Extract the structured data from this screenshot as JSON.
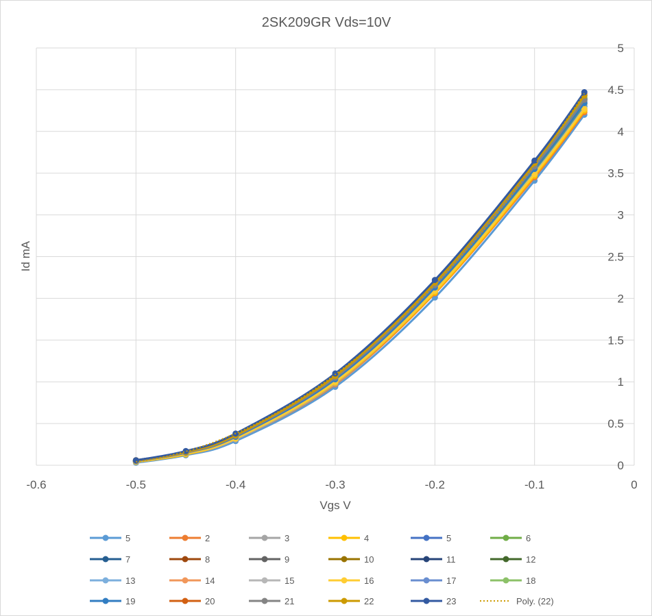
{
  "chart_data": {
    "type": "line",
    "title": "2SK209GR Vds=10V",
    "xlabel": "Vgs V",
    "ylabel": "Id mA",
    "xlim": [
      -0.6,
      0
    ],
    "ylim": [
      0,
      5
    ],
    "x_ticks": [
      "-0.6",
      "-0.5",
      "-0.4",
      "-0.3",
      "-0.2",
      "-0.1",
      "0"
    ],
    "y_ticks": [
      "0",
      "0.5",
      "1",
      "1.5",
      "2",
      "2.5",
      "3",
      "3.5",
      "4",
      "4.5",
      "5"
    ],
    "grid": true,
    "legend_position": "bottom",
    "x": [
      -0.5,
      -0.45,
      -0.4,
      -0.3,
      -0.2,
      -0.1,
      -0.05
    ],
    "series": [
      {
        "name": "5",
        "color": "#5b9bd5",
        "values": [
          0.03,
          0.12,
          0.29,
          0.94,
          2.01,
          3.41,
          4.2
        ]
      },
      {
        "name": "2",
        "color": "#ed7d31",
        "values": [
          0.04,
          0.13,
          0.31,
          0.97,
          2.06,
          3.45,
          4.23
        ]
      },
      {
        "name": "3",
        "color": "#a5a5a5",
        "values": [
          0.04,
          0.13,
          0.31,
          0.98,
          2.08,
          3.48,
          4.26
        ]
      },
      {
        "name": "4",
        "color": "#ffc000",
        "values": [
          0.04,
          0.13,
          0.32,
          0.99,
          2.07,
          3.47,
          4.25
        ]
      },
      {
        "name": "5",
        "color": "#4472c4",
        "values": [
          0.05,
          0.14,
          0.33,
          1.01,
          2.11,
          3.52,
          4.3
        ]
      },
      {
        "name": "6",
        "color": "#70ad47",
        "values": [
          0.05,
          0.14,
          0.33,
          1.02,
          2.12,
          3.54,
          4.33
        ]
      },
      {
        "name": "7",
        "color": "#255e91",
        "values": [
          0.05,
          0.15,
          0.34,
          1.04,
          2.15,
          3.57,
          4.36
        ]
      },
      {
        "name": "8",
        "color": "#9e480e",
        "values": [
          0.05,
          0.15,
          0.35,
          1.05,
          2.16,
          3.58,
          4.38
        ]
      },
      {
        "name": "9",
        "color": "#636363",
        "values": [
          0.05,
          0.15,
          0.35,
          1.05,
          2.17,
          3.59,
          4.39
        ]
      },
      {
        "name": "10",
        "color": "#997300",
        "values": [
          0.05,
          0.15,
          0.35,
          1.05,
          2.16,
          3.58,
          4.38
        ]
      },
      {
        "name": "11",
        "color": "#264478",
        "values": [
          0.06,
          0.16,
          0.36,
          1.07,
          2.19,
          3.62,
          4.43
        ]
      },
      {
        "name": "12",
        "color": "#43682b",
        "values": [
          0.05,
          0.15,
          0.35,
          1.06,
          2.17,
          3.6,
          4.4
        ]
      },
      {
        "name": "13",
        "color": "#7cafdd",
        "values": [
          0.04,
          0.14,
          0.32,
          1.0,
          2.09,
          3.5,
          4.28
        ]
      },
      {
        "name": "14",
        "color": "#f1975a",
        "values": [
          0.05,
          0.15,
          0.34,
          1.03,
          2.13,
          3.55,
          4.34
        ]
      },
      {
        "name": "15",
        "color": "#b7b7b7",
        "values": [
          0.05,
          0.15,
          0.34,
          1.03,
          2.14,
          3.56,
          4.35
        ]
      },
      {
        "name": "16",
        "color": "#ffcd33",
        "values": [
          0.04,
          0.14,
          0.32,
          1.0,
          2.09,
          3.49,
          4.27
        ]
      },
      {
        "name": "17",
        "color": "#698ed0",
        "values": [
          0.05,
          0.15,
          0.35,
          1.05,
          2.16,
          3.58,
          4.38
        ]
      },
      {
        "name": "18",
        "color": "#8cc168",
        "values": [
          0.05,
          0.15,
          0.35,
          1.06,
          2.18,
          3.6,
          4.4
        ]
      },
      {
        "name": "19",
        "color": "#327dc2",
        "values": [
          0.05,
          0.15,
          0.34,
          1.03,
          2.13,
          3.55,
          4.34
        ]
      },
      {
        "name": "20",
        "color": "#d26012",
        "values": [
          0.06,
          0.16,
          0.37,
          1.09,
          2.21,
          3.64,
          4.45
        ]
      },
      {
        "name": "21",
        "color": "#848484",
        "values": [
          0.05,
          0.15,
          0.35,
          1.05,
          2.16,
          3.58,
          4.38
        ]
      },
      {
        "name": "22",
        "color": "#cc9a00",
        "values": [
          0.06,
          0.16,
          0.36,
          1.07,
          2.19,
          3.62,
          4.43
        ]
      },
      {
        "name": "23",
        "color": "#335aa1",
        "values": [
          0.06,
          0.17,
          0.38,
          1.1,
          2.22,
          3.65,
          4.47
        ]
      }
    ],
    "trendline": {
      "name": "Poly. (22)",
      "color": "#cc9a00",
      "style": "dotted",
      "of_series": "22"
    }
  }
}
